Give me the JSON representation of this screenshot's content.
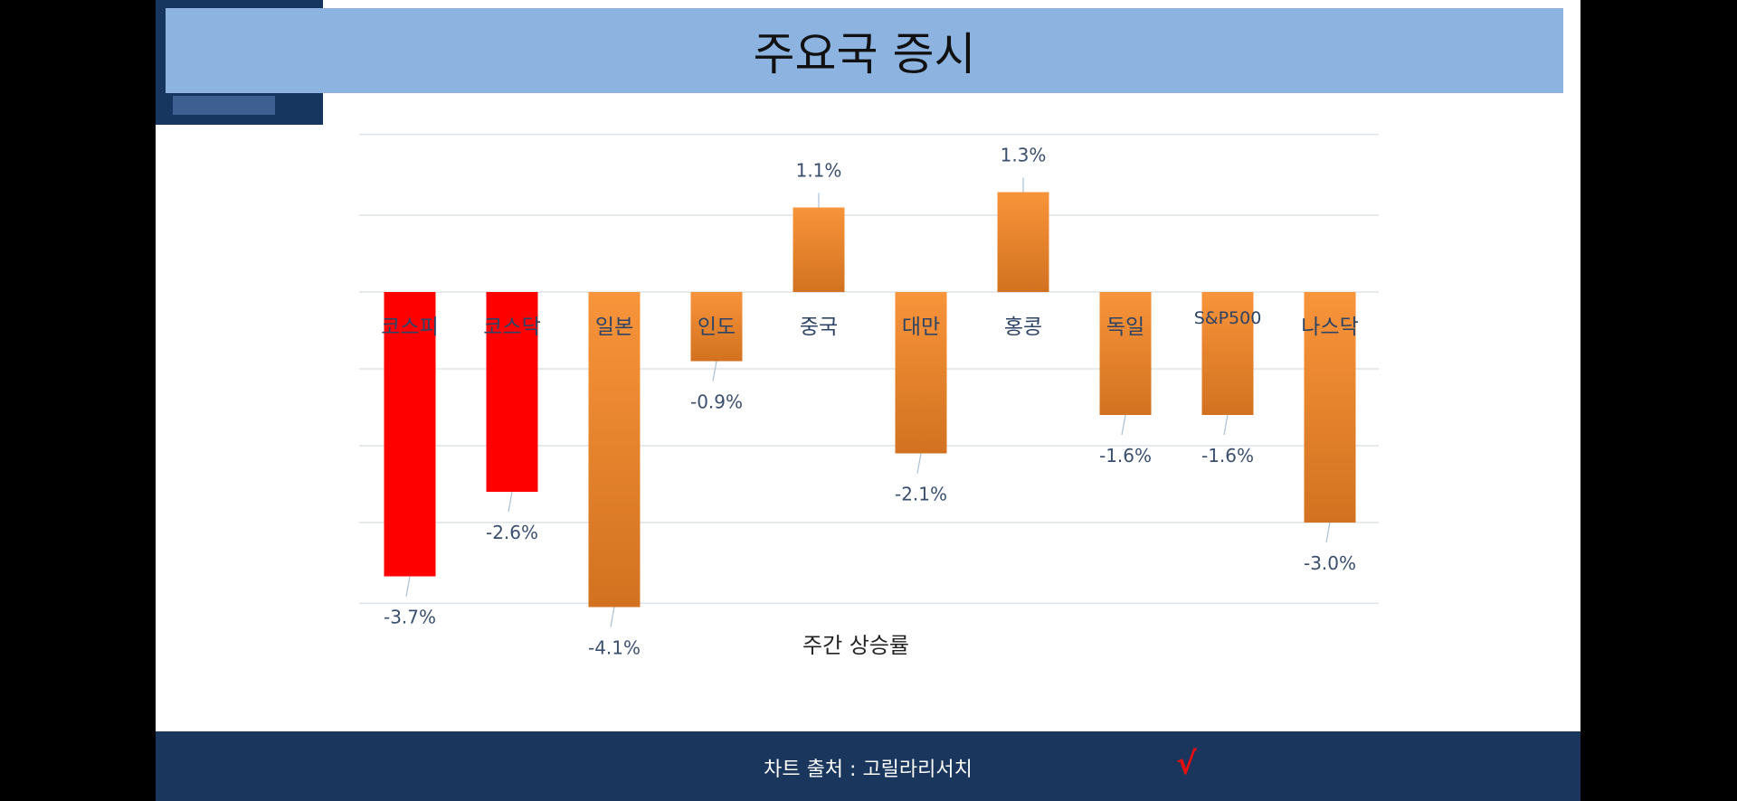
{
  "title": "주요국 증시",
  "footer": {
    "source": "차트 출처 : 고릴라리서치",
    "check_mark": "√"
  },
  "colors": {
    "negative_domestic": "#ff0000",
    "bar_top": "#f8943a",
    "bar_bottom": "#d27220",
    "header": "#8db3e0",
    "navy": "#1a365d"
  },
  "chart_data": {
    "type": "bar",
    "title": "",
    "xlabel": "주간 상승률",
    "ylabel": "",
    "unit": "%",
    "ylim": [
      -4,
      2
    ],
    "grid": true,
    "categories": [
      "코스피",
      "코스닥",
      "일본",
      "인도",
      "중국",
      "대만",
      "홍콩",
      "독일",
      "S&P500",
      "나스닥"
    ],
    "values": [
      -3.7,
      -2.6,
      -4.1,
      -0.9,
      1.1,
      -2.1,
      1.3,
      -1.6,
      -1.6,
      -3.0
    ],
    "labels": [
      "-3.7%",
      "-2.6%",
      "-4.1%",
      "-0.9%",
      "1.1%",
      "-2.1%",
      "1.3%",
      "-1.6%",
      "-1.6%",
      "-3.0%"
    ],
    "highlight": [
      true,
      true,
      false,
      false,
      false,
      false,
      false,
      false,
      false,
      false
    ]
  }
}
